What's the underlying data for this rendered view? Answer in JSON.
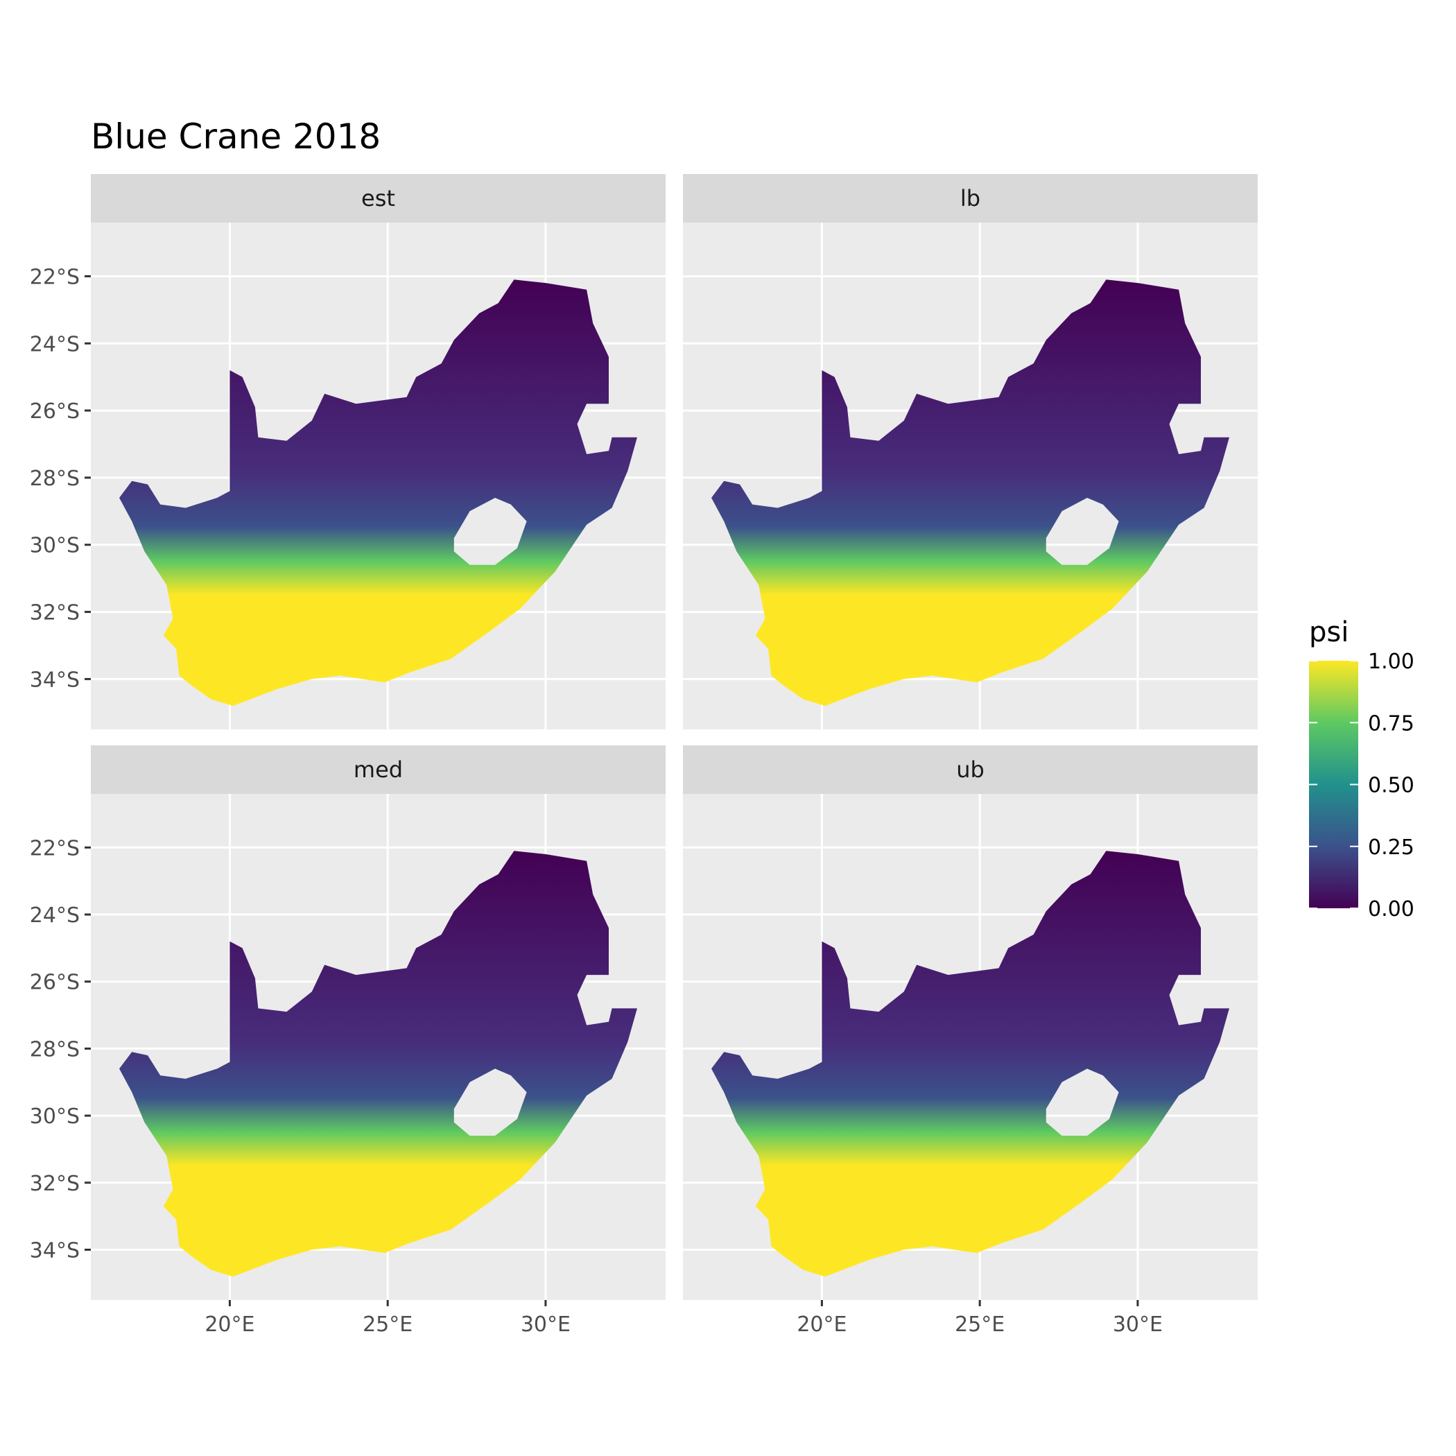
{
  "title": "Blue Crane 2018",
  "panels": [
    {
      "id": "est",
      "label": "est"
    },
    {
      "id": "lb",
      "label": "lb"
    },
    {
      "id": "med",
      "label": "med"
    },
    {
      "id": "ub",
      "label": "ub"
    }
  ],
  "axes": {
    "y_ticks": [
      {
        "lat": -22,
        "label": "22°S"
      },
      {
        "lat": -24,
        "label": "24°S"
      },
      {
        "lat": -26,
        "label": "26°S"
      },
      {
        "lat": -28,
        "label": "28°S"
      },
      {
        "lat": -30,
        "label": "30°S"
      },
      {
        "lat": -32,
        "label": "32°S"
      },
      {
        "lat": -34,
        "label": "34°S"
      }
    ],
    "x_ticks": [
      {
        "lon": 20,
        "label": "20°E"
      },
      {
        "lon": 25,
        "label": "25°E"
      },
      {
        "lon": 30,
        "label": "30°E"
      }
    ],
    "lon_range": [
      15.6,
      33.8
    ],
    "lat_range": [
      -35.5,
      -20.4
    ]
  },
  "legend": {
    "title": "psi",
    "ticks": [
      {
        "value": 1.0,
        "label": "1.00"
      },
      {
        "value": 0.75,
        "label": "0.75"
      },
      {
        "value": 0.5,
        "label": "0.50"
      },
      {
        "value": 0.25,
        "label": "0.25"
      },
      {
        "value": 0.0,
        "label": "0.00"
      }
    ],
    "palette": [
      "#440154",
      "#3b528b",
      "#21918c",
      "#5ec962",
      "#fde725"
    ]
  },
  "colors": {
    "panel_bg": "#ebebeb",
    "strip_bg": "#d9d9d9",
    "grid": "#ffffff",
    "axis_text": "#4d4d4d",
    "land_low": "#440154",
    "land_high": "#fde725"
  }
}
